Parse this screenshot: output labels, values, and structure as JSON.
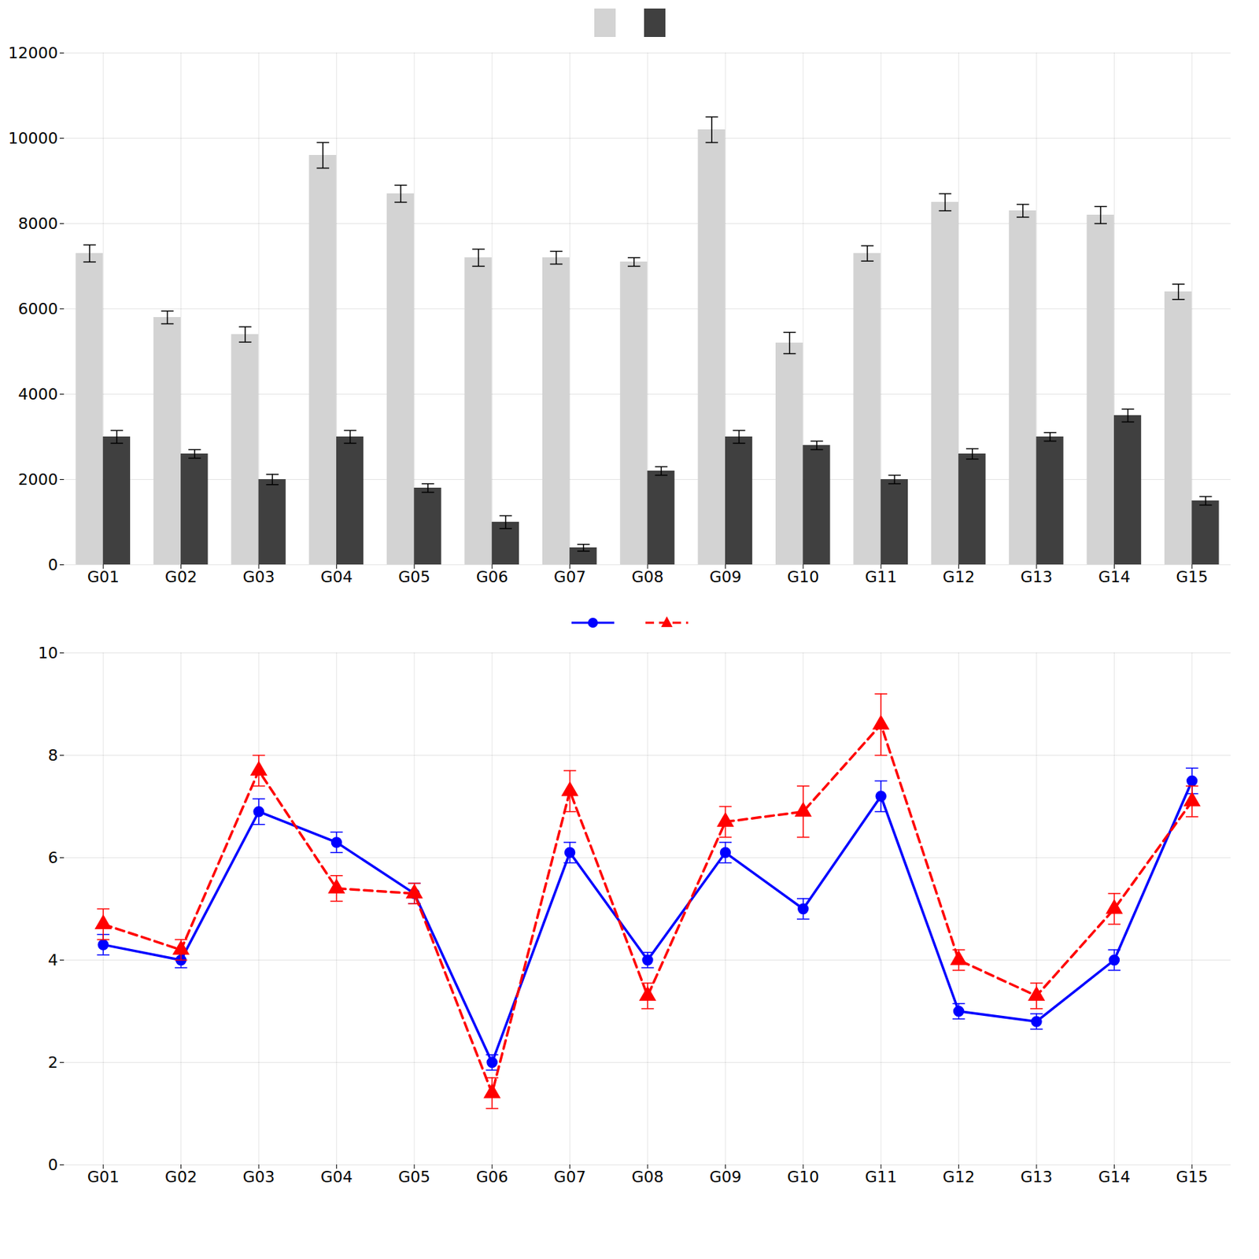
{
  "chart_data": [
    {
      "type": "bar",
      "categories": [
        "G01",
        "G02",
        "G03",
        "G04",
        "G05",
        "G06",
        "G07",
        "G08",
        "G09",
        "G10",
        "G11",
        "G12",
        "G13",
        "G14",
        "G15"
      ],
      "series": [
        {
          "color": "#d3d3d3",
          "values": [
            7300,
            5800,
            5400,
            9600,
            8700,
            7200,
            7200,
            7100,
            10200,
            5200,
            7300,
            8500,
            8300,
            8200,
            6400
          ],
          "errors": [
            200,
            150,
            180,
            300,
            200,
            200,
            150,
            100,
            300,
            250,
            180,
            200,
            150,
            200,
            180
          ]
        },
        {
          "color": "#404040",
          "values": [
            3000,
            2600,
            2000,
            3000,
            1800,
            1000,
            400,
            2200,
            3000,
            2800,
            2000,
            2600,
            3000,
            3500,
            1500
          ],
          "errors": [
            150,
            100,
            120,
            150,
            100,
            150,
            80,
            100,
            150,
            100,
            100,
            120,
            100,
            150,
            100
          ]
        }
      ],
      "ylim": [
        0,
        12000
      ],
      "yticks": [
        0,
        2000,
        4000,
        6000,
        8000,
        10000,
        12000
      ],
      "grid": true,
      "legend": "top"
    },
    {
      "type": "line",
      "categories": [
        "G01",
        "G02",
        "G03",
        "G04",
        "G05",
        "G06",
        "G07",
        "G08",
        "G09",
        "G10",
        "G11",
        "G12",
        "G13",
        "G14",
        "G15"
      ],
      "series": [
        {
          "color": "#0000ff",
          "marker": "circle",
          "line_style": "solid",
          "values": [
            4.3,
            4.0,
            6.9,
            6.3,
            5.3,
            2.0,
            6.1,
            4.0,
            6.1,
            5.0,
            7.2,
            3.0,
            2.8,
            4.0,
            7.5
          ],
          "errors": [
            0.2,
            0.15,
            0.25,
            0.2,
            0.2,
            0.15,
            0.2,
            0.15,
            0.2,
            0.2,
            0.3,
            0.15,
            0.15,
            0.2,
            0.25
          ]
        },
        {
          "color": "#ff0000",
          "marker": "triangle",
          "line_style": "dashed",
          "values": [
            4.7,
            4.2,
            7.7,
            5.4,
            5.3,
            1.4,
            7.3,
            3.3,
            6.7,
            6.9,
            8.6,
            4.0,
            3.3,
            5.0,
            7.1
          ],
          "errors": [
            0.3,
            0.2,
            0.3,
            0.25,
            0.2,
            0.3,
            0.4,
            0.25,
            0.3,
            0.5,
            0.6,
            0.2,
            0.25,
            0.3,
            0.3
          ]
        }
      ],
      "ylim": [
        0,
        10
      ],
      "yticks": [
        0,
        2,
        4,
        6,
        8,
        10
      ],
      "grid": true,
      "legend": "top"
    }
  ]
}
